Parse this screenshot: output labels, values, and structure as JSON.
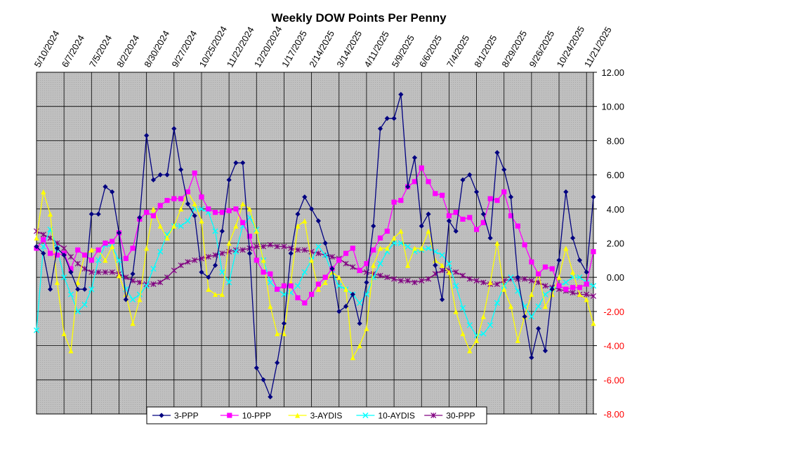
{
  "chart_data": {
    "type": "line",
    "title": "Weekly DOW Points Per Penny",
    "xlabel": "",
    "ylabel": "",
    "ylim": [
      -8,
      12
    ],
    "y_ticks": [
      "12.00",
      "10.00",
      "8.00",
      "6.00",
      "4.00",
      "2.00",
      "0.00",
      "-2.00",
      "-4.00",
      "-6.00",
      "-8.00"
    ],
    "x_tick_labels": [
      "5/10/2024",
      "6/7/2024",
      "7/5/2024",
      "8/2/2024",
      "8/30/2024",
      "9/27/2024",
      "10/25/2024",
      "11/22/2024",
      "12/20/2024",
      "1/17/2025",
      "2/14/2025",
      "3/14/2025",
      "4/11/2025",
      "5/9/2025",
      "6/6/2025",
      "7/4/2025",
      "8/1/2025",
      "8/29/2025",
      "9/26/2025",
      "10/24/2025",
      "11/21/2025"
    ],
    "grid": true,
    "legend_position": "bottom",
    "x_start": "5/10/2024",
    "x_interval": "weekly",
    "colors": {
      "plot_background": "#c0c0c0",
      "negative_tick_labels": "#ff0000",
      "positive_tick_labels": "#000000"
    },
    "series": [
      {
        "name": "3-PPP",
        "color": "#000080",
        "marker": "diamond",
        "values": [
          1.8,
          1.4,
          -0.7,
          1.7,
          1.3,
          0.3,
          -0.7,
          -0.7,
          3.7,
          3.7,
          5.3,
          5.0,
          2.6,
          -1.3,
          0.2,
          3.5,
          8.3,
          5.7,
          6.0,
          6.0,
          8.7,
          6.3,
          4.3,
          3.6,
          0.3,
          0.0,
          0.7,
          2.7,
          5.7,
          6.7,
          6.7,
          1.4,
          -5.3,
          -6.0,
          -7.0,
          -5.0,
          -2.7,
          1.4,
          3.7,
          4.7,
          4.0,
          3.3,
          2.0,
          0.5,
          -2.0,
          -1.7,
          -1.0,
          -2.7,
          -0.3,
          3.0,
          8.7,
          9.3,
          9.3,
          10.7,
          5.3,
          7.0,
          3.0,
          3.7,
          0.7,
          -1.3,
          3.3,
          2.7,
          5.7,
          6.0,
          5.0,
          3.7,
          2.3,
          7.3,
          6.3,
          4.7,
          0.0,
          -2.3,
          -4.7,
          -3.0,
          -4.3,
          -0.7,
          1.0,
          5.0,
          2.3,
          1.0,
          0.3,
          4.7
        ]
      },
      {
        "name": "10-PPP",
        "color": "#ff00ff",
        "marker": "square",
        "values": [
          1.7,
          2.2,
          1.4,
          1.3,
          1.4,
          0.5,
          1.6,
          1.3,
          1.0,
          1.6,
          2.0,
          2.1,
          2.6,
          1.1,
          1.7,
          3.4,
          3.8,
          3.6,
          4.2,
          4.5,
          4.6,
          4.6,
          5.0,
          6.1,
          4.7,
          4.0,
          3.8,
          3.8,
          3.9,
          4.0,
          3.2,
          2.4,
          1.0,
          0.3,
          0.2,
          -0.7,
          -0.5,
          -0.5,
          -1.2,
          -1.5,
          -1.0,
          -0.4,
          0.0,
          0.5,
          1.0,
          1.4,
          1.7,
          0.4,
          0.8,
          1.6,
          2.3,
          2.7,
          4.4,
          4.5,
          5.3,
          5.6,
          6.4,
          5.6,
          4.9,
          4.8,
          3.6,
          3.8,
          3.4,
          3.5,
          2.8,
          3.2,
          4.6,
          4.5,
          5.0,
          3.6,
          3.0,
          1.9,
          0.9,
          0.2,
          0.6,
          0.5,
          -0.5,
          -0.7,
          -0.6,
          -0.6,
          -0.4,
          1.5
        ]
      },
      {
        "name": "3-AYDIS",
        "color": "#ffff00",
        "marker": "triangle",
        "values": [
          2.3,
          5.0,
          3.7,
          -0.3,
          -3.3,
          -4.3,
          -0.3,
          1.3,
          1.6,
          1.6,
          1.0,
          1.8,
          0.1,
          -1.0,
          -2.7,
          -1.3,
          1.7,
          4.0,
          3.0,
          2.3,
          3.0,
          4.0,
          5.0,
          4.3,
          3.3,
          -0.7,
          -1.0,
          -1.0,
          2.0,
          3.0,
          4.3,
          4.0,
          2.7,
          1.0,
          -1.7,
          -3.3,
          -3.3,
          -0.3,
          3.0,
          3.3,
          1.0,
          -0.7,
          -0.3,
          0.3,
          0.0,
          -0.7,
          -4.7,
          -4.0,
          -3.0,
          0.7,
          1.7,
          1.7,
          2.3,
          2.7,
          0.7,
          1.7,
          1.7,
          2.7,
          1.0,
          0.7,
          0.3,
          -2.0,
          -3.3,
          -4.3,
          -3.7,
          -2.3,
          -0.3,
          2.0,
          -0.7,
          -1.7,
          -3.7,
          -2.3,
          -1.0,
          0.3,
          -1.7,
          -1.0,
          0.0,
          1.7,
          0.3,
          -1.0,
          -1.3,
          -2.7
        ]
      },
      {
        "name": "10-AYDIS",
        "color": "#00ffff",
        "marker": "x",
        "values": [
          -3.1,
          1.8,
          2.8,
          1.7,
          0.0,
          -1.0,
          -2.0,
          -1.6,
          -0.7,
          1.0,
          1.9,
          1.8,
          1.0,
          -0.7,
          -1.3,
          -1.0,
          -0.5,
          0.5,
          1.5,
          2.5,
          3.0,
          3.0,
          3.3,
          4.0,
          4.0,
          3.8,
          2.7,
          0.3,
          -0.3,
          1.5,
          3.0,
          3.5,
          2.8,
          1.0,
          -0.3,
          -0.7,
          -1.0,
          -0.9,
          -0.5,
          0.3,
          1.0,
          1.8,
          1.3,
          0.2,
          -0.5,
          -0.7,
          -1.0,
          -1.5,
          -1.0,
          0.0,
          0.8,
          1.5,
          2.0,
          2.0,
          1.8,
          1.5,
          1.6,
          1.7,
          1.5,
          1.3,
          0.8,
          -0.5,
          -1.8,
          -2.8,
          -3.4,
          -3.3,
          -2.8,
          -1.5,
          -0.5,
          0.0,
          -0.8,
          -1.7,
          -2.3,
          -1.7,
          -1.0,
          -0.7,
          -0.5,
          -0.3,
          0.0,
          0.0,
          -0.3,
          -0.5
        ]
      },
      {
        "name": "30-PPP",
        "color": "#800080",
        "marker": "star",
        "values": [
          2.7,
          2.5,
          2.3,
          2.0,
          1.7,
          1.2,
          0.8,
          0.5,
          0.3,
          0.3,
          0.3,
          0.3,
          0.2,
          0.0,
          -0.2,
          -0.3,
          -0.4,
          -0.4,
          -0.3,
          0.0,
          0.4,
          0.7,
          0.9,
          1.0,
          1.1,
          1.2,
          1.3,
          1.4,
          1.5,
          1.6,
          1.6,
          1.7,
          1.8,
          1.8,
          1.9,
          1.8,
          1.8,
          1.7,
          1.6,
          1.6,
          1.5,
          1.4,
          1.3,
          1.2,
          1.1,
          0.8,
          0.6,
          0.4,
          0.3,
          0.2,
          0.1,
          0.0,
          -0.1,
          -0.2,
          -0.2,
          -0.3,
          -0.2,
          -0.1,
          0.2,
          0.4,
          0.4,
          0.3,
          0.1,
          -0.1,
          -0.2,
          -0.3,
          -0.4,
          -0.4,
          -0.2,
          -0.1,
          -0.1,
          -0.1,
          -0.2,
          -0.3,
          -0.5,
          -0.6,
          -0.7,
          -0.8,
          -0.9,
          -1.0,
          -1.0,
          -1.1
        ]
      }
    ]
  }
}
